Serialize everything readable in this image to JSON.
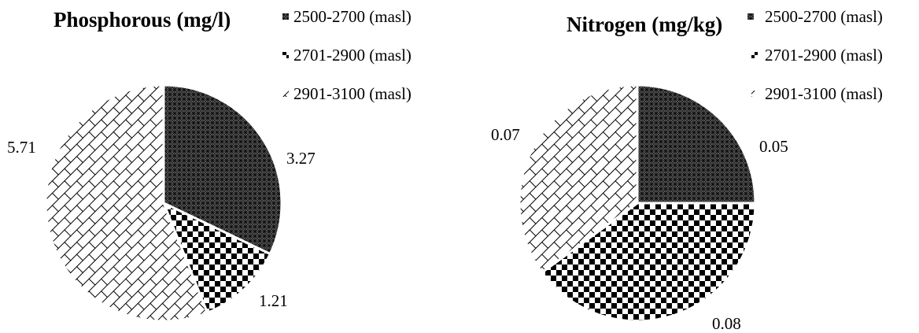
{
  "legend_series": [
    "2500-2700 (masl)",
    "2701-2900 (masl)",
    "2901-3100 (masl)"
  ],
  "chart_data": [
    {
      "type": "pie",
      "title": "Phosphorous (mg/l)",
      "categories": [
        "2500-2700 (masl)",
        "2701-2900 (masl)",
        "2901-3100 (masl)"
      ],
      "values": [
        3.27,
        1.21,
        5.71
      ],
      "data_labels": [
        "3.27",
        "1.21",
        "5.71"
      ],
      "legend_placement": "top-right",
      "patterns": [
        "dense-grid",
        "checkerboard",
        "brick"
      ]
    },
    {
      "type": "pie",
      "title": "Nitrogen (mg/kg)",
      "categories": [
        "2500-2700 (masl)",
        "2701-2900 (masl)",
        "2901-3100 (masl)"
      ],
      "values": [
        0.05,
        0.08,
        0.07
      ],
      "data_labels": [
        "0.05",
        "0.08",
        "0.07"
      ],
      "legend_placement": "top-right",
      "patterns": [
        "dense-grid",
        "checkerboard",
        "brick"
      ]
    }
  ]
}
